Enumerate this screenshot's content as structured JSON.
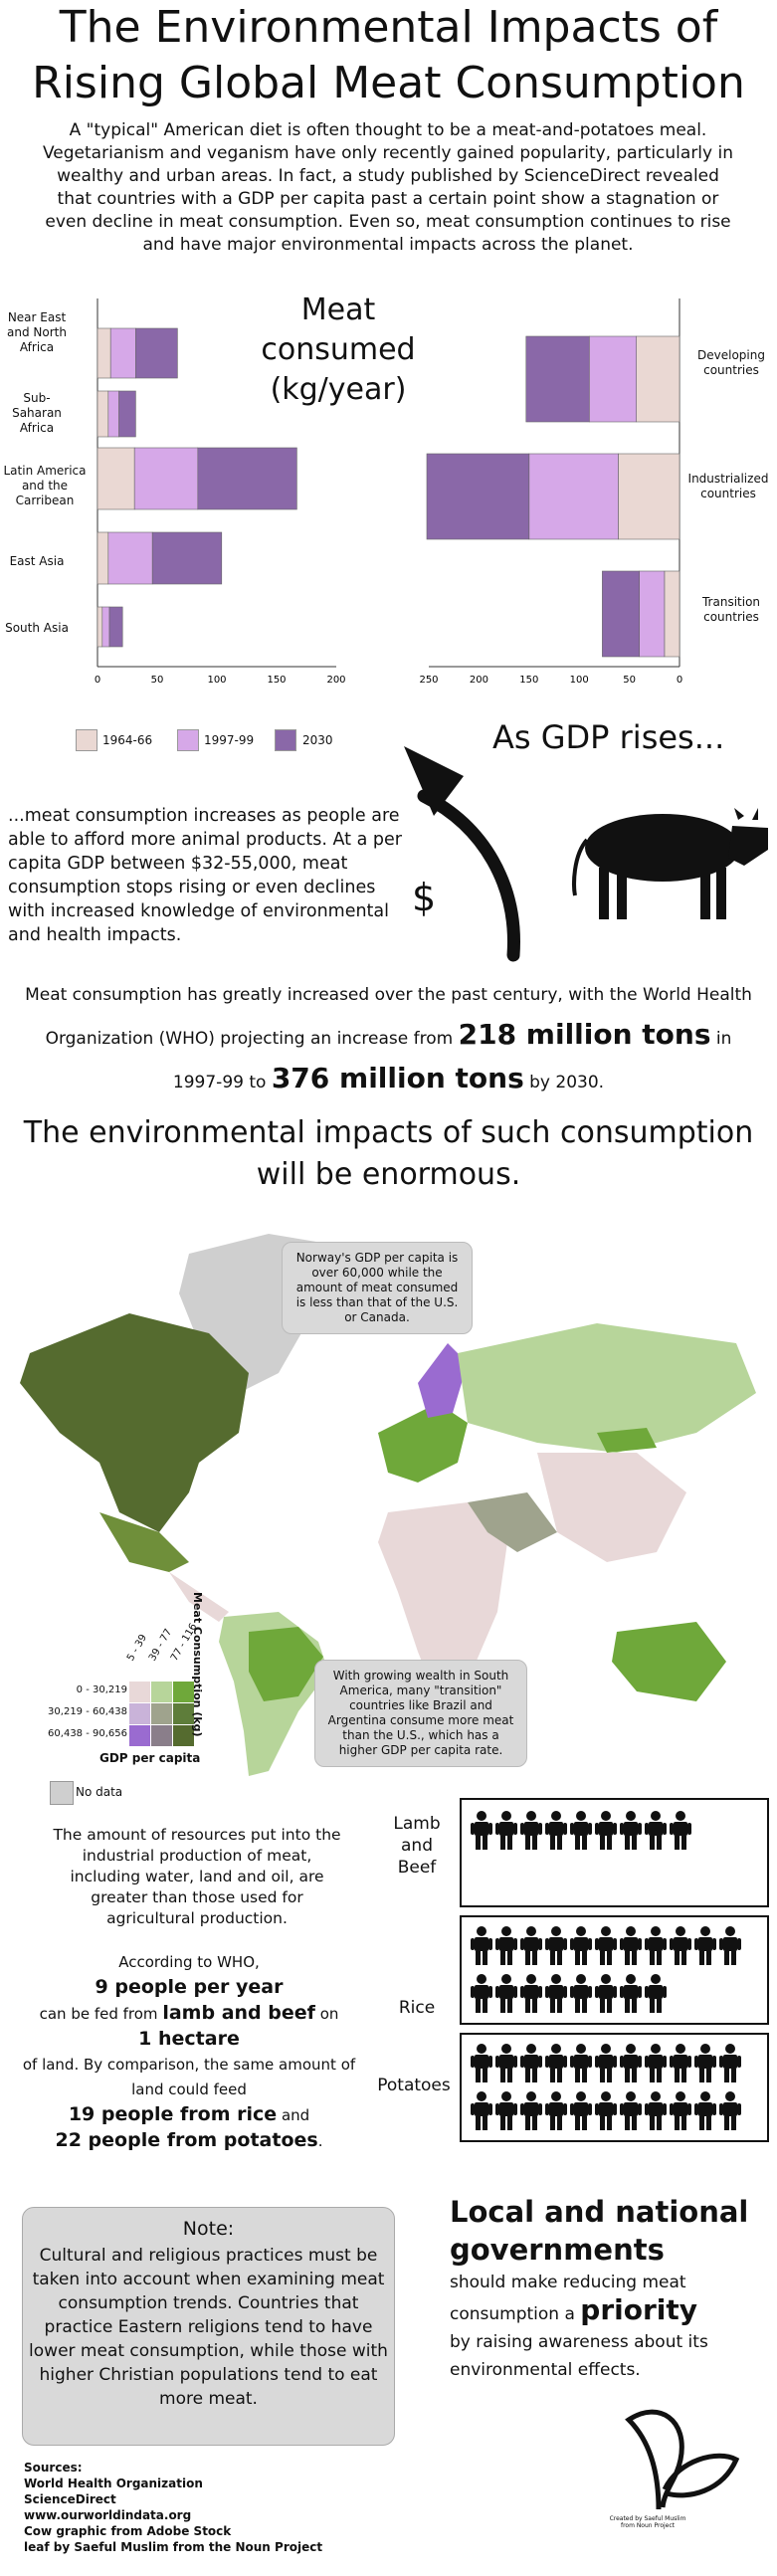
{
  "title_line1": "The Environmental Impacts of",
  "title_line2": "Rising Global Meat Consumption",
  "intro": "A \"typical\" American diet is often thought to be a meat-and-potatoes meal. Vegetarianism and veganism have only recently gained popularity, particularly in wealthy and urban areas.  In fact, a study published by ScienceDirect revealed that countries with a GDP per capita past a certain point show a stagnation or even decline in meat consumption.  Even so, meat consumption continues to rise and have major environmental impacts across the planet.",
  "chart_data": {
    "type": "bar",
    "title": "Meat consumed (kg/year)",
    "legend": [
      "1964-66",
      "1997-99",
      "2030"
    ],
    "colors": [
      "#ead8d3",
      "#d6a8e8",
      "#8a68a8"
    ],
    "left": {
      "categories": [
        "Near East and North Africa",
        "Sub-Saharan Africa",
        "Latin America and the Carribean",
        "East Asia",
        "South Asia"
      ],
      "series": [
        {
          "name": "1964-66",
          "values": [
            11,
            9,
            31,
            9,
            4
          ]
        },
        {
          "name": "1997-99",
          "values": [
            21,
            9,
            53,
            37,
            6
          ]
        },
        {
          "name": "2030",
          "values": [
            35,
            14,
            83,
            58,
            11
          ]
        }
      ],
      "xlim": [
        0,
        200
      ],
      "ticks": [
        "0",
        "50",
        "100",
        "150",
        "200"
      ]
    },
    "right": {
      "categories": [
        "Developing countries",
        "Industrialized countries",
        "Transition countries"
      ],
      "series": [
        {
          "name": "1964-66",
          "values": [
            43,
            61,
            15
          ]
        },
        {
          "name": "1997-99",
          "values": [
            47,
            89,
            25
          ]
        },
        {
          "name": "2030",
          "values": [
            63,
            102,
            37
          ]
        }
      ],
      "xlim": [
        0,
        250
      ],
      "ticks": [
        "250",
        "200",
        "150",
        "100",
        "50",
        "0"
      ]
    }
  },
  "gdp_rises": "As GDP rises...",
  "dollar": "$",
  "meat_text": "...meat consumption increases as people are able to afford more animal products. At a per capita GDP between $32-55,000, meat consumption stops rising or even declines with increased knowledge of environmental and health impacts.",
  "who_proj": {
    "a": "Meat consumption has greatly increased over the past century, with the World Health",
    "b": "Organization (WHO) projecting an increase from",
    "c": "218 million tons",
    "d": "in",
    "e": "1997-99 to",
    "f": "376 million tons",
    "g": "by 2030."
  },
  "impact_head_1": "The environmental impacts of such consumption",
  "impact_head_2": "will be enormous.",
  "map": {
    "norway_note": "Norway's GDP per capita is over 60,000 while the amount of meat consumed is less than that of the U.S. or Canada.",
    "sa_note": "With growing wealth in South America, many \"transition\" countries like Brazil and Argentina consume more meat than the U.S., which has a higher GDP per capita rate.",
    "legend_gdp_rows": [
      "0 - 30,219",
      "30,219 - 60,438",
      "60,438 - 90,656"
    ],
    "legend_meat_cols": [
      "5 - 39",
      "39 - 77",
      "77 - 116"
    ],
    "legend_meat_title": "Meat Consumption (kg)",
    "legend_gdp_title": "GDP per capita",
    "no_data": "No data",
    "colors": [
      "#e8d8d8",
      "#b7d59a",
      "#6fa83a",
      "#c9b3d9",
      "#9fa38d",
      "#5e7d3a",
      "#9a6bd0",
      "#8a7e8a",
      "#556b2f"
    ]
  },
  "resources_text": "The amount of resources put into the industrial production of meat, including water, land and oil, are greater than those used for agricultural production.",
  "who_people": {
    "l1": "According to WHO,",
    "l2": "9 people per year",
    "l3": "can be fed from",
    "l4": "lamb and beef",
    "l5": "on",
    "l6": "1 hectare",
    "l7": "of land.  By comparison, the same amount of land could feed",
    "l8": "19 people from rice",
    "l9": "and",
    "l10": "22 people from potatoes",
    "l11": "."
  },
  "people_rows": [
    {
      "label": "Lamb and Beef",
      "count": 9
    },
    {
      "label": "Rice",
      "count": 19
    },
    {
      "label": "Potatoes",
      "count": 22
    }
  ],
  "note_head": "Note:",
  "note_text": "Cultural and religious practices must be taken into account when examining meat consumption trends.  Countries that practice Eastern religions tend to have lower meat consumption, while those with higher Christian populations tend to eat more meat.",
  "gov": {
    "h": "Local and national governments",
    "a": "should make reducing meat consumption a",
    "p": "priority",
    "b": "by raising awareness about its environmental effects."
  },
  "leaf_credit": "Created by Saeful Muslim from Noun Project",
  "sources": [
    "Sources:",
    "World Health Organization",
    "ScienceDirect",
    "www.ourworldindata.org",
    "Cow graphic from Adobe Stock",
    "leaf by Saeful Muslim from the Noun Project"
  ]
}
